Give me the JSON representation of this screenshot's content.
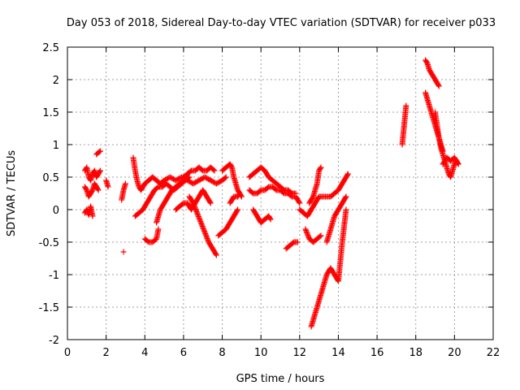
{
  "chart_data": {
    "type": "scatter",
    "title": "Day 053 of 2018, Sidereal Day-to-day VTEC variation (SDTVAR) for receiver p033",
    "xlabel": "GPS time / hours",
    "ylabel": "SDTVAR / TECUs",
    "xlim": [
      0,
      22
    ],
    "ylim": [
      -2,
      2.5
    ],
    "xticks": [
      0,
      2,
      4,
      6,
      8,
      10,
      12,
      14,
      16,
      18,
      20,
      22
    ],
    "yticks": [
      -2,
      -1.5,
      -1,
      -0.5,
      0,
      0.5,
      1,
      1.5,
      2,
      2.5
    ],
    "xtick_labels": [
      "0",
      "2",
      "4",
      "6",
      "8",
      "10",
      "12",
      "14",
      "16",
      "18",
      "20",
      "22"
    ],
    "ytick_labels": [
      "-2",
      "-1.5",
      "-1",
      "-0.5",
      "0",
      "0.5",
      "1",
      "1.5",
      "2",
      "2.5"
    ],
    "grid": true,
    "marker": "+",
    "color": "#ff0000",
    "segments": [
      {
        "x": [
          0.9,
          1.0,
          1.1,
          1.2,
          1.3,
          1.4,
          1.5,
          1.6,
          1.7
        ],
        "y": [
          0.6,
          0.65,
          0.5,
          0.45,
          0.55,
          0.6,
          0.5,
          0.55,
          0.6
        ]
      },
      {
        "x": [
          0.9,
          1.0,
          1.1,
          1.2,
          1.3,
          1.4,
          1.5,
          1.6
        ],
        "y": [
          0.35,
          0.3,
          0.2,
          0.25,
          0.3,
          0.4,
          0.35,
          0.3
        ]
      },
      {
        "x": [
          0.9,
          1.0,
          1.1,
          1.2,
          1.3
        ],
        "y": [
          -0.05,
          0.0,
          -0.08,
          0.05,
          -0.1
        ]
      },
      {
        "x": [
          1.5,
          1.6,
          1.7
        ],
        "y": [
          0.85,
          0.88,
          0.9
        ]
      },
      {
        "x": [
          2.0,
          2.1
        ],
        "y": [
          0.45,
          0.35
        ]
      },
      {
        "x": [
          2.8,
          2.9,
          3.0
        ],
        "y": [
          0.15,
          0.3,
          0.4
        ]
      },
      {
        "x": [
          2.9
        ],
        "y": [
          -0.65
        ]
      },
      {
        "x": [
          3.4,
          3.5,
          3.6,
          3.7,
          3.8,
          3.9,
          4.0,
          4.2,
          4.4,
          4.6,
          4.8,
          5.0,
          5.3,
          5.6,
          5.9,
          6.2,
          6.5,
          6.8,
          7.1,
          7.4,
          7.7,
          8.0,
          8.2
        ],
        "y": [
          0.8,
          0.6,
          0.45,
          0.35,
          0.3,
          0.35,
          0.4,
          0.45,
          0.5,
          0.45,
          0.4,
          0.45,
          0.5,
          0.45,
          0.5,
          0.45,
          0.4,
          0.45,
          0.5,
          0.45,
          0.4,
          0.45,
          0.5
        ]
      },
      {
        "x": [
          3.5,
          3.7,
          3.9,
          4.1,
          4.3,
          4.5,
          4.7,
          4.9,
          5.1,
          5.3,
          5.5,
          5.7,
          5.9,
          6.1,
          6.3
        ],
        "y": [
          -0.1,
          -0.05,
          0.0,
          0.1,
          0.2,
          0.3,
          0.35,
          0.35,
          0.4,
          0.35,
          0.3,
          0.35,
          0.4,
          0.45,
          0.5
        ]
      },
      {
        "x": [
          4.0,
          4.2,
          4.4,
          4.6,
          4.7
        ],
        "y": [
          -0.45,
          -0.5,
          -0.5,
          -0.45,
          -0.3
        ]
      },
      {
        "x": [
          4.6,
          4.8,
          5.0,
          5.2,
          5.4,
          5.6,
          5.8,
          6.0
        ],
        "y": [
          -0.2,
          0.0,
          0.1,
          0.2,
          0.3,
          0.35,
          0.4,
          0.45
        ]
      },
      {
        "x": [
          6.0,
          6.2,
          6.4,
          6.6,
          6.8,
          7.0,
          7.2,
          7.4,
          7.6
        ],
        "y": [
          0.5,
          0.55,
          0.6,
          0.6,
          0.65,
          0.6,
          0.6,
          0.65,
          0.6
        ]
      },
      {
        "x": [
          6.3,
          6.5,
          6.7,
          6.9,
          7.1,
          7.3,
          7.5,
          7.7
        ],
        "y": [
          0.2,
          0.1,
          -0.05,
          -0.2,
          -0.35,
          -0.5,
          -0.6,
          -0.7
        ]
      },
      {
        "x": [
          5.6,
          5.8,
          6.0,
          6.2,
          6.4,
          6.6,
          6.8,
          7.0,
          7.2,
          7.4
        ],
        "y": [
          0.0,
          0.05,
          0.1,
          0.1,
          0.0,
          0.1,
          0.2,
          0.3,
          0.2,
          0.1
        ]
      },
      {
        "x": [
          7.8,
          8.0,
          8.2,
          8.4,
          8.6,
          8.8
        ],
        "y": [
          -0.4,
          -0.35,
          -0.3,
          -0.2,
          -0.1,
          0.0
        ]
      },
      {
        "x": [
          8.0,
          8.2,
          8.4,
          8.5,
          8.6,
          8.8,
          9.0
        ],
        "y": [
          0.6,
          0.65,
          0.7,
          0.65,
          0.5,
          0.3,
          0.2
        ]
      },
      {
        "x": [
          8.4,
          8.6,
          8.8,
          8.9
        ],
        "y": [
          0.1,
          0.2,
          0.2,
          0.25
        ]
      },
      {
        "x": [
          9.4,
          9.6,
          9.8,
          10.0,
          10.2,
          10.4,
          10.6,
          10.8,
          11.0,
          11.2,
          11.4,
          11.6,
          11.8
        ],
        "y": [
          0.5,
          0.55,
          0.6,
          0.65,
          0.6,
          0.5,
          0.45,
          0.4,
          0.35,
          0.3,
          0.3,
          0.25,
          0.25
        ]
      },
      {
        "x": [
          9.4,
          9.6,
          9.8,
          10.0,
          10.2,
          10.4,
          10.6,
          10.8,
          11.0,
          11.2,
          11.4,
          11.6,
          11.8,
          12.0
        ],
        "y": [
          0.3,
          0.25,
          0.25,
          0.3,
          0.3,
          0.35,
          0.35,
          0.3,
          0.3,
          0.25,
          0.25,
          0.2,
          0.2,
          0.1
        ]
      },
      {
        "x": [
          9.6,
          9.8,
          10.0,
          10.2,
          10.4,
          10.5
        ],
        "y": [
          0.0,
          -0.1,
          -0.2,
          -0.15,
          -0.1,
          -0.15
        ]
      },
      {
        "x": [
          11.3,
          11.5,
          11.7,
          11.9
        ],
        "y": [
          -0.6,
          -0.55,
          -0.5,
          -0.5
        ]
      },
      {
        "x": [
          12.0,
          12.2,
          12.4,
          12.6,
          12.8,
          13.0,
          13.2,
          13.4,
          13.6,
          13.8,
          14.0,
          14.2,
          14.4,
          14.5
        ],
        "y": [
          0.0,
          -0.05,
          -0.1,
          0.0,
          0.1,
          0.2,
          0.2,
          0.2,
          0.2,
          0.25,
          0.3,
          0.4,
          0.5,
          0.55
        ]
      },
      {
        "x": [
          12.5,
          12.7,
          12.9,
          13.0,
          13.1
        ],
        "y": [
          0.1,
          0.2,
          0.4,
          0.6,
          0.65
        ]
      },
      {
        "x": [
          12.3,
          12.5,
          12.7,
          12.9,
          13.1
        ],
        "y": [
          -0.3,
          -0.45,
          -0.5,
          -0.45,
          -0.4
        ]
      },
      {
        "x": [
          12.6,
          12.8,
          13.0,
          13.2,
          13.4,
          13.6,
          13.8,
          14.0,
          14.2,
          14.4
        ],
        "y": [
          -1.8,
          -1.6,
          -1.4,
          -1.2,
          -1.0,
          -0.9,
          -1.0,
          -1.1,
          -0.5,
          0.0
        ]
      },
      {
        "x": [
          13.4,
          13.6,
          13.8,
          14.0,
          14.2,
          14.4
        ],
        "y": [
          -0.5,
          -0.3,
          -0.1,
          0.0,
          0.1,
          0.2
        ]
      },
      {
        "x": [
          17.3,
          17.35,
          17.4,
          17.45,
          17.5
        ],
        "y": [
          1.0,
          1.15,
          1.3,
          1.45,
          1.6
        ]
      },
      {
        "x": [
          18.5,
          18.6,
          18.7,
          18.8,
          18.9,
          19.0,
          19.1,
          19.2
        ],
        "y": [
          2.3,
          2.25,
          2.15,
          2.1,
          2.05,
          2.0,
          1.95,
          1.9
        ]
      },
      {
        "x": [
          18.5,
          18.6,
          18.7,
          18.8,
          18.9,
          19.0,
          19.1,
          19.2,
          19.3,
          19.4
        ],
        "y": [
          1.8,
          1.7,
          1.6,
          1.5,
          1.4,
          1.3,
          1.2,
          1.1,
          1.0,
          0.9
        ]
      },
      {
        "x": [
          19.0,
          19.1,
          19.2,
          19.3,
          19.4,
          19.5,
          19.6,
          19.7,
          19.8,
          19.9,
          20.0,
          20.1,
          20.2
        ],
        "y": [
          1.5,
          1.3,
          1.1,
          0.95,
          0.85,
          0.75,
          0.65,
          0.55,
          0.5,
          0.6,
          0.7,
          0.75,
          0.7
        ]
      },
      {
        "x": [
          19.4,
          19.6,
          19.8,
          20.0,
          20.2
        ],
        "y": [
          0.7,
          0.8,
          0.75,
          0.8,
          0.7
        ]
      }
    ]
  }
}
